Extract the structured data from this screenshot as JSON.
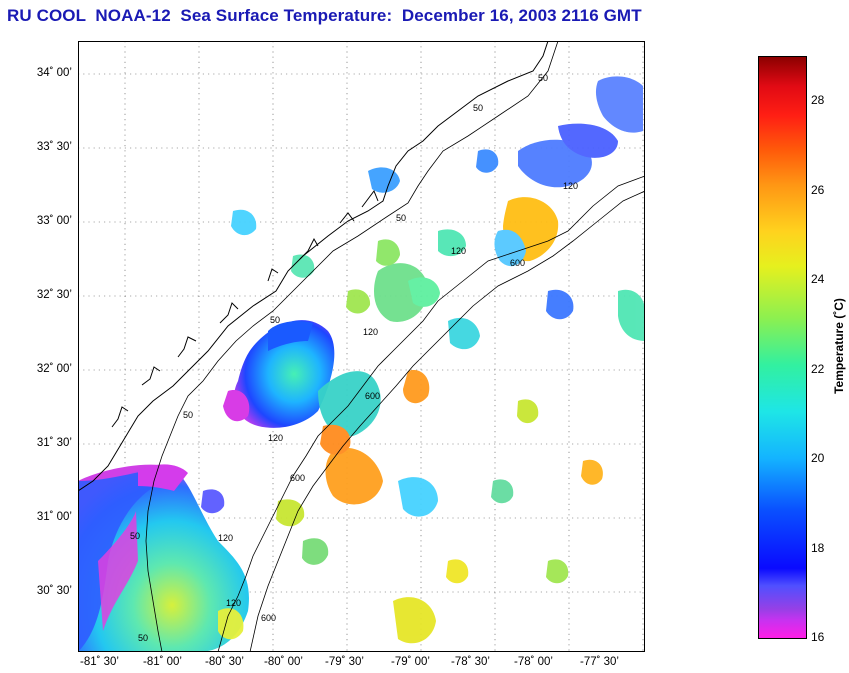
{
  "title": "RU COOL  NOAA-12  Sea Surface Temperature:  December 16, 2003 2116 GMT",
  "map": {
    "lat_labels": [
      "34˚ 00’",
      "33˚ 30’",
      "33˚ 00’",
      "32˚ 30’",
      "32˚ 00’",
      "31˚ 30’",
      "31˚ 00’",
      "30˚ 30’"
    ],
    "lon_labels": [
      "-81˚ 30’",
      "-81˚ 00’",
      "-80˚ 30’",
      "-80˚ 00’",
      "-79˚ 30’",
      "-79˚ 00’",
      "-78˚ 30’",
      "-78˚ 00’",
      "-77˚ 30’"
    ],
    "contour_labels": [
      "50",
      "50",
      "50",
      "50",
      "50",
      "50",
      "50",
      "120",
      "120",
      "120",
      "120",
      "120",
      "120",
      "600",
      "600",
      "600",
      "600"
    ]
  },
  "colorbar": {
    "title": "Temperature (˚C)",
    "labels": [
      "28",
      "26",
      "24",
      "22",
      "20",
      "18",
      "16"
    ],
    "min": 16,
    "max": 29
  }
}
